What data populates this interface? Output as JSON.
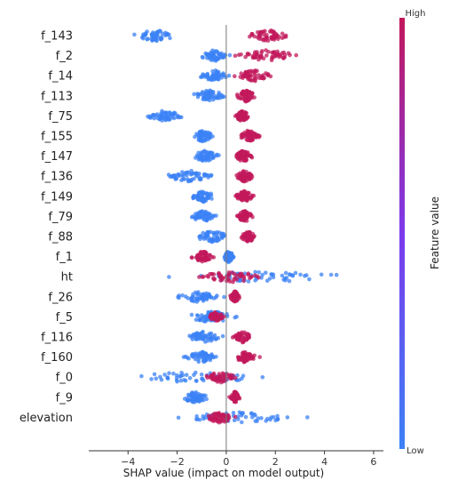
{
  "chart_data": {
    "type": "scatter",
    "subtype": "shap-beeswarm",
    "title": "",
    "xlabel": "SHAP value (impact on model output)",
    "ylabel": "",
    "xlim": [
      -5.6,
      6.4
    ],
    "x_ticks": [
      "−4",
      "−2",
      "0",
      "2",
      "4",
      "6"
    ],
    "x_tick_values": [
      -4,
      -2,
      0,
      2,
      4,
      6
    ],
    "grid": false,
    "zero_line": true,
    "colorbar": {
      "title": "Feature value",
      "high_label": "High",
      "low_label": "Low",
      "low_color": "#3b82f6",
      "high_color": "#c2185b",
      "position": "right"
    },
    "features": [
      {
        "name": "f_143",
        "blue_range": [
          -4.0,
          -1.8
        ],
        "red_range": [
          0.6,
          2.8
        ]
      },
      {
        "name": "f_2",
        "blue_range": [
          -1.2,
          0.2
        ],
        "red_range": [
          0.2,
          3.2
        ]
      },
      {
        "name": "f_14",
        "blue_range": [
          -1.2,
          0.2
        ],
        "red_range": [
          0.2,
          2.0
        ]
      },
      {
        "name": "f_113",
        "blue_range": [
          -1.6,
          0.2
        ],
        "red_range": [
          0.3,
          1.3
        ]
      },
      {
        "name": "f_75",
        "blue_range": [
          -3.5,
          -1.5
        ],
        "red_range": [
          0.3,
          1.0
        ]
      },
      {
        "name": "f_155",
        "blue_range": [
          -1.5,
          -0.4
        ],
        "red_range": [
          0.3,
          1.5
        ]
      },
      {
        "name": "f_147",
        "blue_range": [
          -1.5,
          -0.2
        ],
        "red_range": [
          0.2,
          1.2
        ]
      },
      {
        "name": "f_136",
        "blue_range": [
          -2.8,
          -0.2
        ],
        "red_range": [
          0.3,
          1.2
        ]
      },
      {
        "name": "f_149",
        "blue_range": [
          -1.6,
          -0.3
        ],
        "red_range": [
          0.3,
          1.2
        ]
      },
      {
        "name": "f_79",
        "blue_range": [
          -1.6,
          -0.3
        ],
        "red_range": [
          0.3,
          1.2
        ]
      },
      {
        "name": "f_88",
        "blue_range": [
          -1.6,
          0.4
        ],
        "red_range": [
          0.5,
          1.3
        ]
      },
      {
        "name": "f_1",
        "blue_range": [
          -0.2,
          0.4
        ],
        "red_range": [
          -1.5,
          -0.4
        ]
      },
      {
        "name": "ht",
        "blue_range": [
          -2.8,
          6.0
        ],
        "red_range": [
          -1.5,
          2.0
        ]
      },
      {
        "name": "f_26",
        "blue_range": [
          -2.2,
          0.0
        ],
        "red_range": [
          0.1,
          0.6
        ]
      },
      {
        "name": "f_5",
        "blue_range": [
          -2.0,
          0.8
        ],
        "red_range": [
          -0.8,
          0.0
        ]
      },
      {
        "name": "f_116",
        "blue_range": [
          -1.8,
          0.0
        ],
        "red_range": [
          0.1,
          1.2
        ]
      },
      {
        "name": "f_160",
        "blue_range": [
          -1.8,
          -0.2
        ],
        "red_range": [
          0.1,
          1.4
        ]
      },
      {
        "name": "f_0",
        "blue_range": [
          -5.3,
          2.7
        ],
        "red_range": [
          -1.0,
          0.5
        ]
      },
      {
        "name": "f_9",
        "blue_range": [
          -2.0,
          -0.5
        ],
        "red_range": [
          0.1,
          0.6
        ]
      },
      {
        "name": "elevation",
        "blue_range": [
          -2.5,
          4.0
        ],
        "red_range": [
          -1.0,
          0.5
        ]
      }
    ]
  }
}
